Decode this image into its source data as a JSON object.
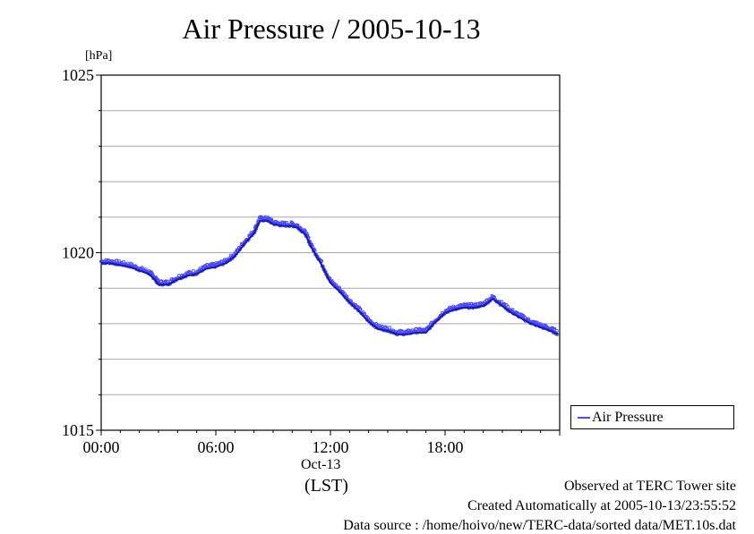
{
  "chart_data": {
    "type": "line",
    "title": "Air Pressure / 2005-10-13",
    "ylabel": "[hPa]",
    "ylim": [
      1015,
      1025
    ],
    "yticks": [
      1015,
      1020,
      1025
    ],
    "xlim": [
      0,
      24
    ],
    "xticks": [
      0,
      6,
      12,
      18
    ],
    "xtick_labels": [
      "00:00",
      "06:00",
      "12:00",
      "18:00"
    ],
    "x_date_label": "Oct-13",
    "x_tz_label": "(LST)",
    "grid": true,
    "legend_position": "right",
    "series": [
      {
        "name": "Air Pressure",
        "color": "#4a4aff",
        "x": [
          0.0,
          0.5,
          1.0,
          1.5,
          2.0,
          2.5,
          2.8,
          3.0,
          3.5,
          4.0,
          4.5,
          5.0,
          5.5,
          6.0,
          6.5,
          7.0,
          7.5,
          8.0,
          8.3,
          8.7,
          9.0,
          9.5,
          10.0,
          10.3,
          10.7,
          11.0,
          11.5,
          12.0,
          12.5,
          13.0,
          13.5,
          14.0,
          14.5,
          15.0,
          15.5,
          16.0,
          16.5,
          17.0,
          17.5,
          18.0,
          18.5,
          19.0,
          19.5,
          20.0,
          20.5,
          21.0,
          21.5,
          22.0,
          22.5,
          23.0,
          23.5,
          23.9
        ],
        "y": [
          1019.75,
          1019.75,
          1019.7,
          1019.65,
          1019.55,
          1019.45,
          1019.3,
          1019.15,
          1019.15,
          1019.3,
          1019.4,
          1019.45,
          1019.6,
          1019.65,
          1019.75,
          1019.95,
          1020.3,
          1020.6,
          1020.95,
          1020.95,
          1020.85,
          1020.8,
          1020.8,
          1020.75,
          1020.55,
          1020.2,
          1019.75,
          1019.2,
          1018.95,
          1018.65,
          1018.4,
          1018.1,
          1017.9,
          1017.85,
          1017.75,
          1017.75,
          1017.8,
          1017.8,
          1018.1,
          1018.35,
          1018.45,
          1018.5,
          1018.5,
          1018.55,
          1018.75,
          1018.55,
          1018.35,
          1018.2,
          1018.05,
          1017.95,
          1017.85,
          1017.75
        ]
      }
    ]
  },
  "footer": {
    "observed": "Observed at TERC Tower site",
    "created": "Created Automatically at 2005-10-13/23:55:52",
    "source": "Data source : /home/hoivo/new/TERC-data/sorted  data/MET.10s.dat"
  }
}
